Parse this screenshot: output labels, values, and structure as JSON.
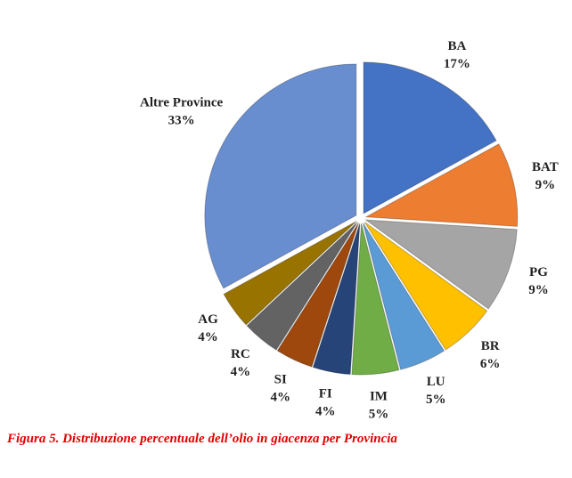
{
  "chart_data": {
    "type": "pie",
    "categories": [
      "BA",
      "BAT",
      "PG",
      "BR",
      "LU",
      "IM",
      "FI",
      "SI",
      "RC",
      "AG",
      "Altre Province"
    ],
    "values": [
      17,
      9,
      9,
      6,
      5,
      5,
      4,
      4,
      4,
      4,
      33
    ],
    "value_labels": [
      "17%",
      "9%",
      "9%",
      "6%",
      "5%",
      "5%",
      "4%",
      "4%",
      "4%",
      "4%",
      "33%"
    ],
    "colors": [
      "#4472c4",
      "#ed7d31",
      "#a5a5a5",
      "#ffc000",
      "#5b9bd5",
      "#70ad47",
      "#264478",
      "#9e480e",
      "#636363",
      "#997300",
      "#698ed0"
    ],
    "caption": "Figura 5. Distribuzione percentuale dell’olio in giacenza per Provincia"
  }
}
